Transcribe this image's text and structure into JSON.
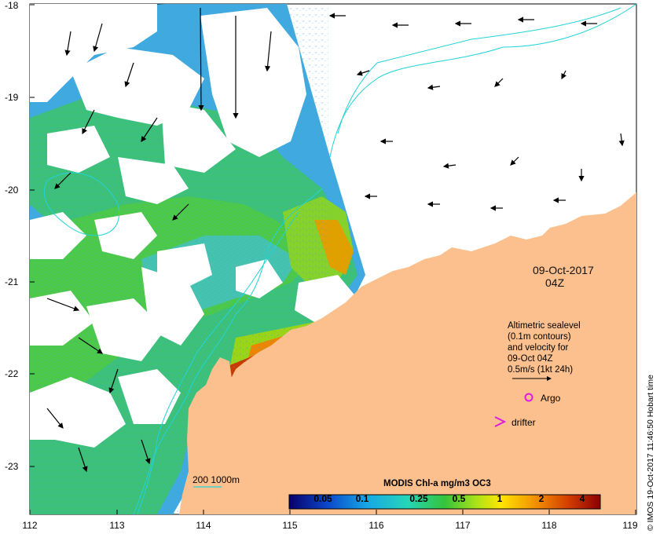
{
  "map": {
    "date": "09-Oct-2017",
    "hour": "04Z",
    "lat_labels": [
      "-18",
      "-19",
      "-20",
      "-21",
      "-22",
      "-23"
    ],
    "lon_labels": [
      "112",
      "113",
      "114",
      "115",
      "116",
      "117",
      "118",
      "119"
    ],
    "legend": {
      "line1": "Altimetric sealevel",
      "line2": "(0.1m contours)",
      "line3": "and velocity for",
      "line4": "09-Oct 04Z",
      "line5": "0.5m/s (1kt 24h)"
    },
    "argo_label": "Argo",
    "drifter_label": "drifter",
    "depth_label": "200  1000m",
    "colorbar": {
      "title": "MODIS Chl-a mg/m3 OC3",
      "ticks": [
        "0.05",
        "0.1",
        "0.25",
        "0.5",
        "1",
        "2",
        "4"
      ]
    },
    "credit": "© IMOS 19-Oct-2017 11:46:50 Hobart time",
    "colors": {
      "land": "#fbc08e",
      "contour": "#22d3d8",
      "argo": "#e11be1",
      "low_chl": "#3aa0e0",
      "high_chl": "#8a0000"
    }
  }
}
